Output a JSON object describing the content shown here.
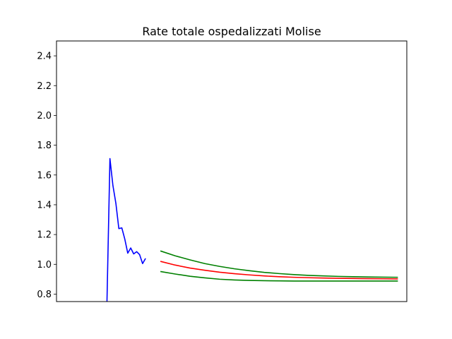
{
  "chart_data": {
    "type": "line",
    "title": "Rate totale ospedalizzati Molise",
    "xlabel": "",
    "ylabel": "",
    "ylim": [
      0.75,
      2.5
    ],
    "xlim": [
      -17,
      101
    ],
    "yticks": [
      "0.8",
      "1.0",
      "1.2",
      "1.4",
      "1.6",
      "1.8",
      "2.0",
      "2.2",
      "2.4"
    ],
    "xticks": [],
    "grid": false,
    "legend": "none",
    "series": [
      {
        "color": "#0000ff",
        "x": [
          0,
          1,
          2,
          3,
          4,
          5,
          6,
          7,
          8,
          9,
          10,
          11,
          12,
          13,
          14,
          15,
          16
        ],
        "y": [
          0.75,
          1.71,
          1.53,
          1.41,
          1.24,
          1.245,
          1.17,
          1.075,
          1.11,
          1.07,
          1.085,
          1.065,
          1.005,
          1.04,
          null,
          null,
          null
        ]
      },
      {
        "color": "#ff0000",
        "x": [
          18,
          23,
          28,
          33,
          38,
          43,
          48,
          53,
          58,
          63,
          68,
          73,
          78,
          83,
          88,
          93,
          98
        ],
        "y": [
          1.02,
          0.995,
          0.975,
          0.96,
          0.947,
          0.937,
          0.929,
          0.922,
          0.917,
          0.913,
          0.91,
          0.908,
          0.906,
          0.905,
          0.904,
          0.903,
          0.902
        ]
      },
      {
        "color": "#008000",
        "x": [
          18,
          23,
          28,
          33,
          38,
          43,
          48,
          53,
          58,
          63,
          68,
          73,
          78,
          83,
          88,
          93,
          98
        ],
        "y": [
          1.09,
          1.057,
          1.03,
          1.005,
          0.986,
          0.97,
          0.957,
          0.946,
          0.938,
          0.931,
          0.926,
          0.922,
          0.919,
          0.917,
          0.915,
          0.914,
          0.913
        ]
      },
      {
        "color": "#008000",
        "x": [
          18,
          23,
          28,
          33,
          38,
          43,
          48,
          53,
          58,
          63,
          68,
          73,
          78,
          83,
          88,
          93,
          98
        ],
        "y": [
          0.952,
          0.935,
          0.92,
          0.909,
          0.9,
          0.895,
          0.892,
          0.89,
          0.889,
          0.888,
          0.888,
          0.888,
          0.888,
          0.888,
          0.888,
          0.888,
          0.888
        ]
      }
    ]
  }
}
